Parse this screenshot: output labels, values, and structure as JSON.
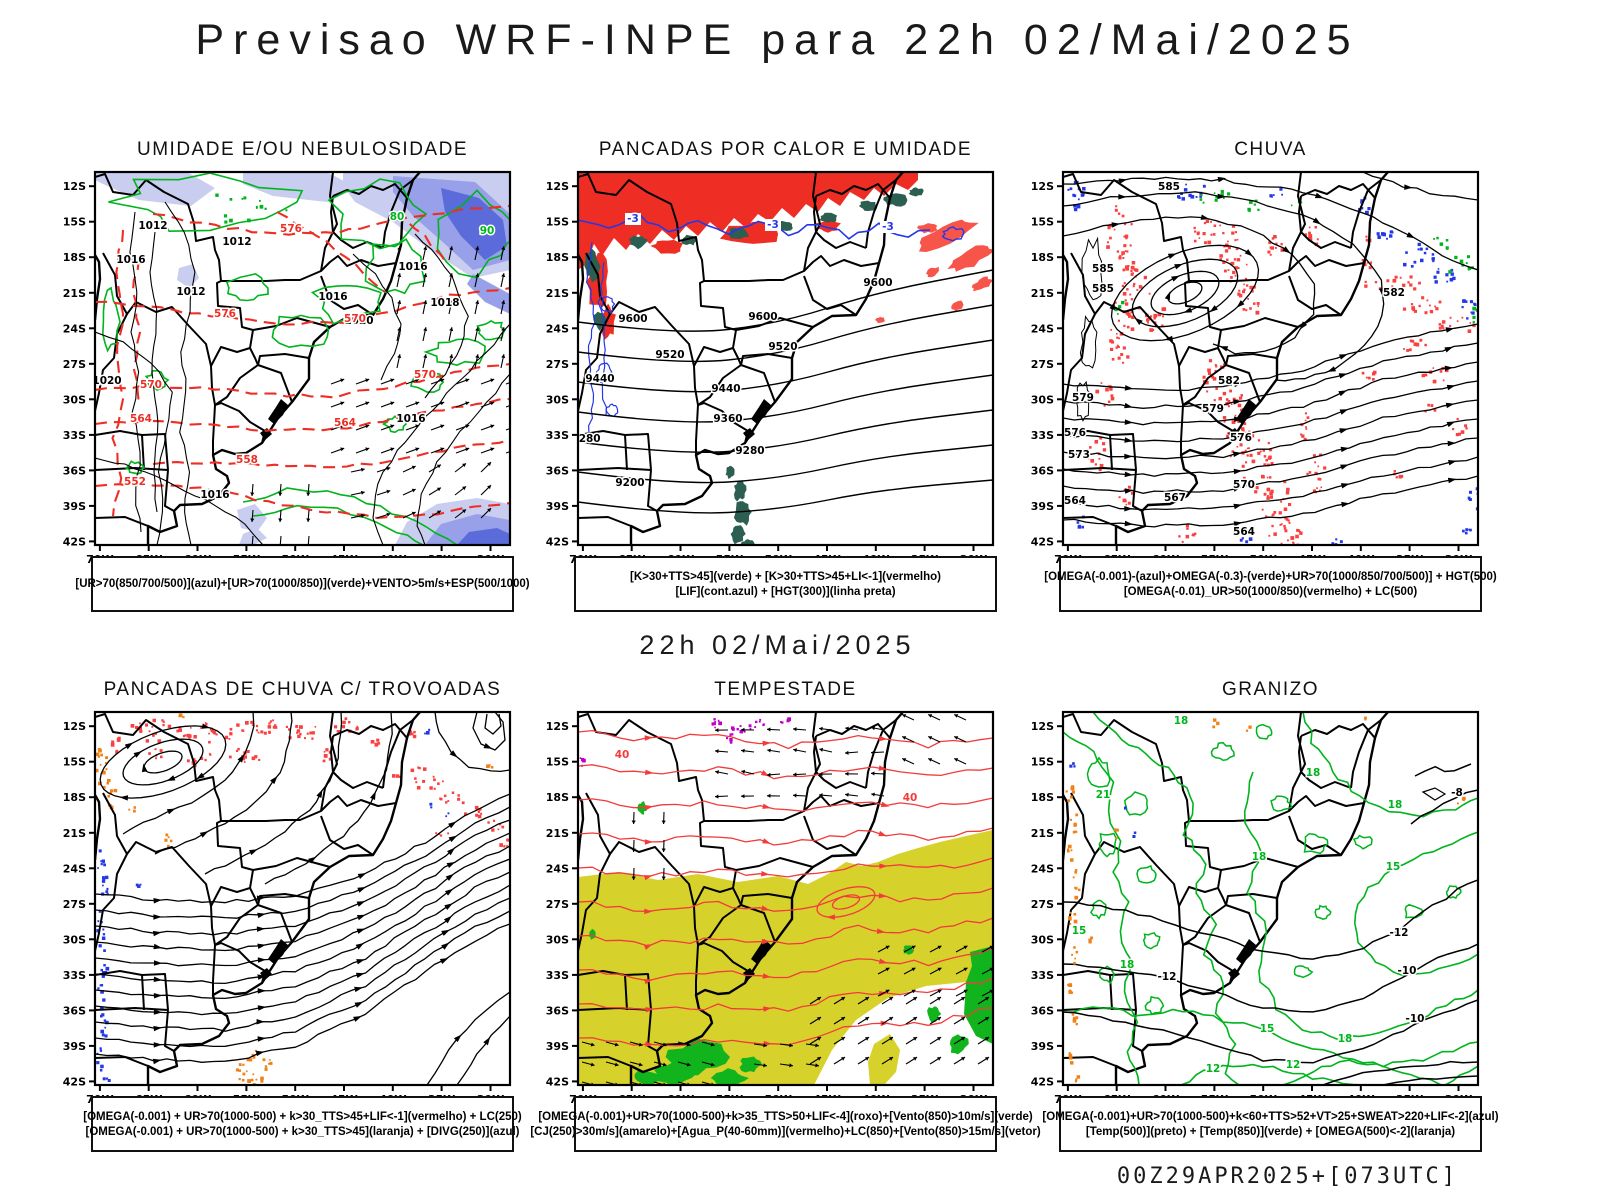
{
  "page": {
    "title": "Previsao WRF-INPE  para 22h 02/Mai/2025",
    "valid_datetime": "22h 02/Mai/2025",
    "run_info": "00Z29APR2025+[073UTC]"
  },
  "palette": {
    "green": "#00b41e",
    "red": "#ee2e24",
    "salmon": "#f8554a",
    "rain_red": "#fb4040",
    "stream_red": "#f23c3c",
    "blue": "#2438e8",
    "teal": "#2d5e52",
    "shade_light": "#c9cdf0",
    "shade_mid": "#97a0e8",
    "shade_dark": "#5b6bd9",
    "yellow": "#d7d12b",
    "fill_green": "#12b41e",
    "orange": "#f08118",
    "purple": "#c000c8",
    "black": "#000000"
  },
  "chart_data": {
    "type": "contour-map-grid",
    "model": "WRF-INPE",
    "region": "South America / Brazil sector",
    "valid": "22h 02/Mai/2025",
    "run": "00Z29APR2025+[073UTC]",
    "grid": "2 rows x 3 columns of weather forecast maps",
    "lon_ticks": [
      "70W",
      "65W",
      "60W",
      "55W",
      "50W",
      "45W",
      "40W",
      "35W",
      "30W"
    ],
    "lat_ticks": [
      "12S",
      "15S",
      "18S",
      "21S",
      "24S",
      "27S",
      "30S",
      "33S",
      "36S",
      "39S",
      "42S"
    ],
    "panels": [
      {
        "title": "UMIDADE E/OU NEBULOSIDADE",
        "legend_lines": [
          "[UR>70(850/700/500)](azul)+[UR>70(1000/850)](verde)+VENTO>5m/s+ESP(500/1000)"
        ],
        "labels": {
          "black": [
            "1012",
            "1012",
            "1012",
            "1016",
            "1016",
            "1016",
            "1016",
            "1016",
            "1020",
            "1020",
            "1018"
          ],
          "red": [
            "576",
            "576",
            "570",
            "570",
            "570",
            "564",
            "564",
            "558",
            "552"
          ],
          "green": [
            "90",
            "80"
          ]
        }
      },
      {
        "title": "PANCADAS POR CALOR E UMIDADE",
        "legend_lines": [
          "[K>30+TTS>45](verde) + [K>30+TTS>45+LI<-1](vermelho)",
          "[LIF](cont.azul) + [HGT(300)](linha preta)"
        ],
        "labels": {
          "black": [
            "9600",
            "9600",
            "9600",
            "9520",
            "9520",
            "9440",
            "9440",
            "9360",
            "9280",
            "9280",
            "9200"
          ],
          "blue": [
            "-3",
            "-3",
            "-3"
          ]
        }
      },
      {
        "title": "CHUVA",
        "legend_lines": [
          "[OMEGA(-0.001)-(azul)+OMEGA(-0.3)-(verde)+UR>70(1000/850/700/500)] + HGT(500)",
          "[OMEGA(-0.01)_UR>50(1000/850)(vermelho) + LC(500)"
        ],
        "labels": {
          "black": [
            "585",
            "585",
            "585",
            "582",
            "582",
            "579",
            "579",
            "576",
            "576",
            "573",
            "570",
            "567",
            "564",
            "564"
          ]
        }
      },
      {
        "title": "PANCADAS DE CHUVA C/ TROVOADAS",
        "legend_lines": [
          "[OMEGA(-0.001) + UR>70(1000-500) + k>30_TTS>45+LIF<-1](vermelho) + LC(250)",
          "[OMEGA(-0.001) + UR>70(1000-500) + k>30_TTS>45](laranja) + [DIVG(250)](azul)"
        ],
        "labels": {}
      },
      {
        "title": "TEMPESTADE",
        "legend_lines": [
          "[OMEGA(-0.001)+UR>70(1000-500)+k>35_TTS>50+LIF<-4](roxo)+[Vento(850)>10m/s](verde)",
          "[CJ(250)>30m/s](amarelo)+[Agua_P(40-60mm)](vermelho)+LC(850)+[Vento(850)>15m/s](vetor)"
        ],
        "labels": {
          "red": [
            "40",
            "40"
          ]
        }
      },
      {
        "title": "GRANIZO",
        "legend_lines": [
          "[OMEGA(-0.001)+UR>70(1000-500)+k<60+TTS>52+VT>25+SWEAT>220+LIF<-2](azul)",
          "[Temp(500)](preto) + [Temp(850)](verde) + [OMEGA(500)<-2](laranja)"
        ],
        "labels": {
          "green": [
            "18",
            "18",
            "18",
            "18",
            "18",
            "18",
            "15",
            "15",
            "15",
            "12",
            "12",
            "21"
          ],
          "black": [
            "-12",
            "-12",
            "-10",
            "-10",
            "-8"
          ]
        }
      }
    ]
  }
}
